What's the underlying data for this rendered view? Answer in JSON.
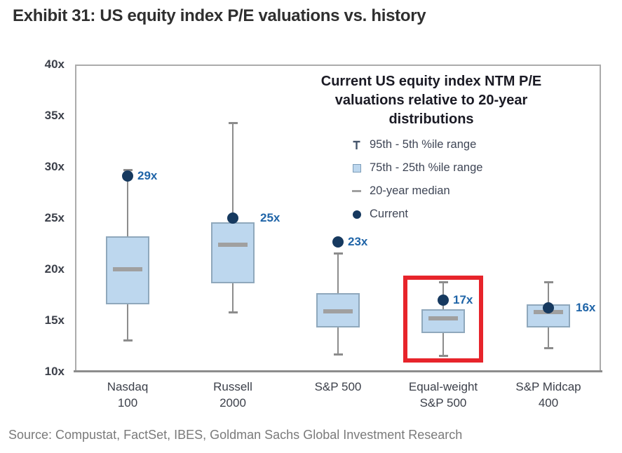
{
  "title": "Exhibit 31: US equity index P/E valuations vs. history",
  "source": "Source: Compustat, FactSet, IBES, Goldman Sachs Global Investment Research",
  "chart_data": {
    "type": "boxplot",
    "title": "Exhibit 31: US equity index P/E valuations vs. history",
    "legend": {
      "title": "Current US equity index NTM P/E valuations relative to 20-year distributions",
      "position": "top-right inside plot",
      "items": [
        {
          "icon": "whisker-range-icon",
          "label": "95th - 5th %ile range"
        },
        {
          "icon": "iqr-box-icon",
          "label": "75th - 25th %ile range"
        },
        {
          "icon": "median-dash-icon",
          "label": "20-year median"
        },
        {
          "icon": "current-dot-icon",
          "label": "Current"
        }
      ]
    },
    "y_axis": {
      "min": 10,
      "max": 40,
      "tick_suffix": "x",
      "ticks": [
        "40x",
        "35x",
        "30x",
        "25x",
        "20x",
        "15x",
        "10x"
      ],
      "grid": false
    },
    "categories": [
      "Nasdaq\n100",
      "Russell\n2000",
      "S&P 500",
      "Equal-weight\nS&P 500",
      "S&P Midcap\n400"
    ],
    "series": [
      {
        "name": "Nasdaq 100",
        "p95": 29.7,
        "p75": 23.2,
        "median": 20.0,
        "p25": 16.6,
        "p5": 13.1,
        "current": 29.1,
        "current_label": "29x",
        "highlighted": false
      },
      {
        "name": "Russell 2000",
        "p95": 34.3,
        "p75": 24.6,
        "median": 22.4,
        "p25": 18.6,
        "p5": 15.8,
        "current": 25.0,
        "current_label": "25x",
        "highlighted": false
      },
      {
        "name": "S&P 500",
        "p95": 21.6,
        "p75": 17.7,
        "median": 15.9,
        "p25": 14.3,
        "p5": 11.7,
        "current": 22.7,
        "current_label": "23x",
        "highlighted": false
      },
      {
        "name": "Equal-weight S&P 500",
        "p95": 18.8,
        "p75": 16.1,
        "median": 15.2,
        "p25": 13.8,
        "p5": 11.6,
        "current": 17.0,
        "current_label": "17x",
        "highlighted": true
      },
      {
        "name": "S&P Midcap 400",
        "p95": 18.8,
        "p75": 16.6,
        "median": 15.8,
        "p25": 14.3,
        "p5": 12.3,
        "current": 16.2,
        "current_label": "16x",
        "highlighted": false
      }
    ],
    "highlight": {
      "series": "Equal-weight S&P 500",
      "series_index": 3,
      "top_value": 19.4,
      "bottom_value": 10.9,
      "color": "#e7242b"
    },
    "colors": {
      "box_fill": "#bdd7ee",
      "box_border": "#8fa8bc",
      "whisker": "#8c8c8c",
      "median": "#a0a0a0",
      "current_dot": "#16395f",
      "value_label": "#2065a8",
      "highlight": "#e7242b",
      "plot_border": "#ababab",
      "axis_line": "#8c8c8c",
      "title_text": "#2f2f2f",
      "source_text": "#7a7a7a"
    },
    "source": "Source: Compustat, FactSet, IBES, Goldman Sachs Global Investment Research"
  }
}
